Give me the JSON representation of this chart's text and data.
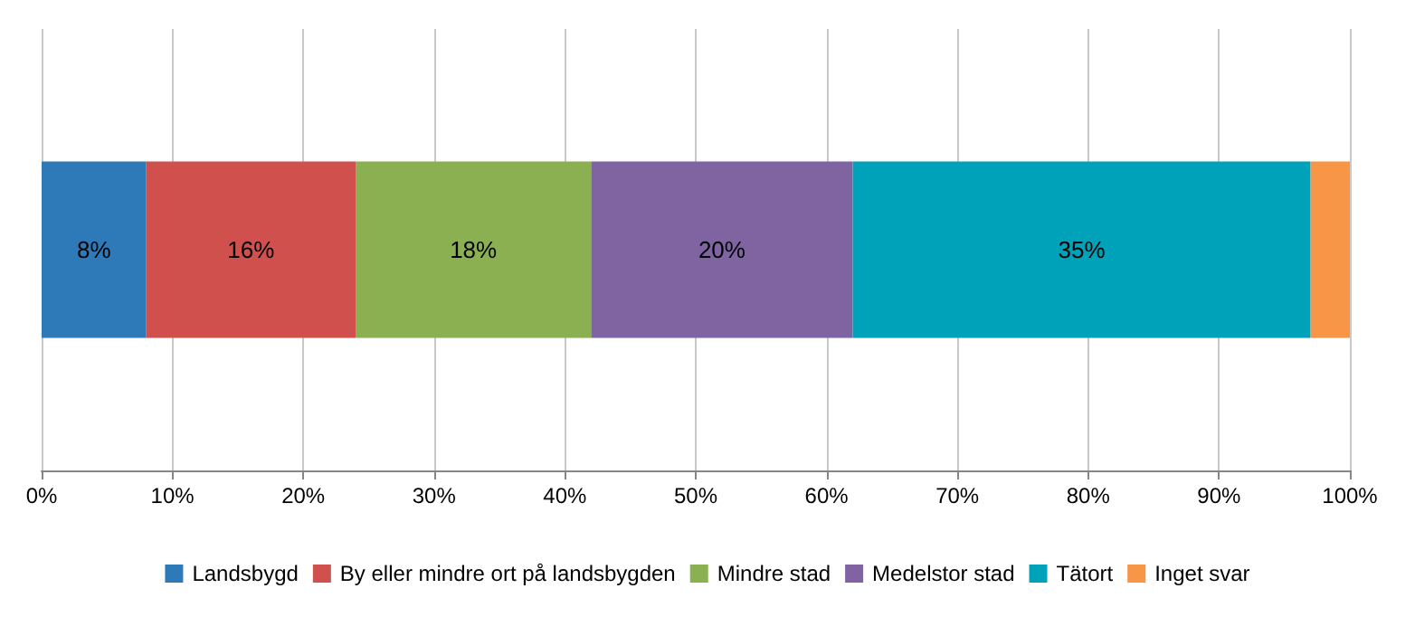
{
  "chart_data": {
    "type": "bar",
    "orientation": "horizontal",
    "stacked": true,
    "categories": [
      null
    ],
    "series": [
      {
        "name": "Landsbygd",
        "color": "#2e7ab8",
        "values": [
          8
        ],
        "value_labels": [
          "8%"
        ]
      },
      {
        "name": "By eller mindre ort på landsbygden",
        "color": "#d0504d",
        "values": [
          16
        ],
        "value_labels": [
          "16%"
        ]
      },
      {
        "name": "Mindre stad",
        "color": "#8bb051",
        "values": [
          18
        ],
        "value_labels": [
          "18%"
        ]
      },
      {
        "name": "Medelstor stad",
        "color": "#8064a2",
        "values": [
          20
        ],
        "value_labels": [
          "20%"
        ]
      },
      {
        "name": "Tätort",
        "color": "#00a2b9",
        "values": [
          35
        ],
        "value_labels": [
          "35%"
        ]
      },
      {
        "name": "Inget svar",
        "color": "#f79646",
        "values": [
          3
        ],
        "value_labels": [
          null
        ]
      }
    ],
    "xlim": [
      0,
      100
    ],
    "xticks": [
      {
        "value": 0,
        "label": "0%"
      },
      {
        "value": 10,
        "label": "10%"
      },
      {
        "value": 20,
        "label": "20%"
      },
      {
        "value": 30,
        "label": "30%"
      },
      {
        "value": 40,
        "label": "40%"
      },
      {
        "value": 50,
        "label": "50%"
      },
      {
        "value": 60,
        "label": "60%"
      },
      {
        "value": 70,
        "label": "70%"
      },
      {
        "value": 80,
        "label": "80%"
      },
      {
        "value": 90,
        "label": "90%"
      },
      {
        "value": 100,
        "label": "100%"
      }
    ],
    "grid": "x",
    "legend": "bottom"
  }
}
